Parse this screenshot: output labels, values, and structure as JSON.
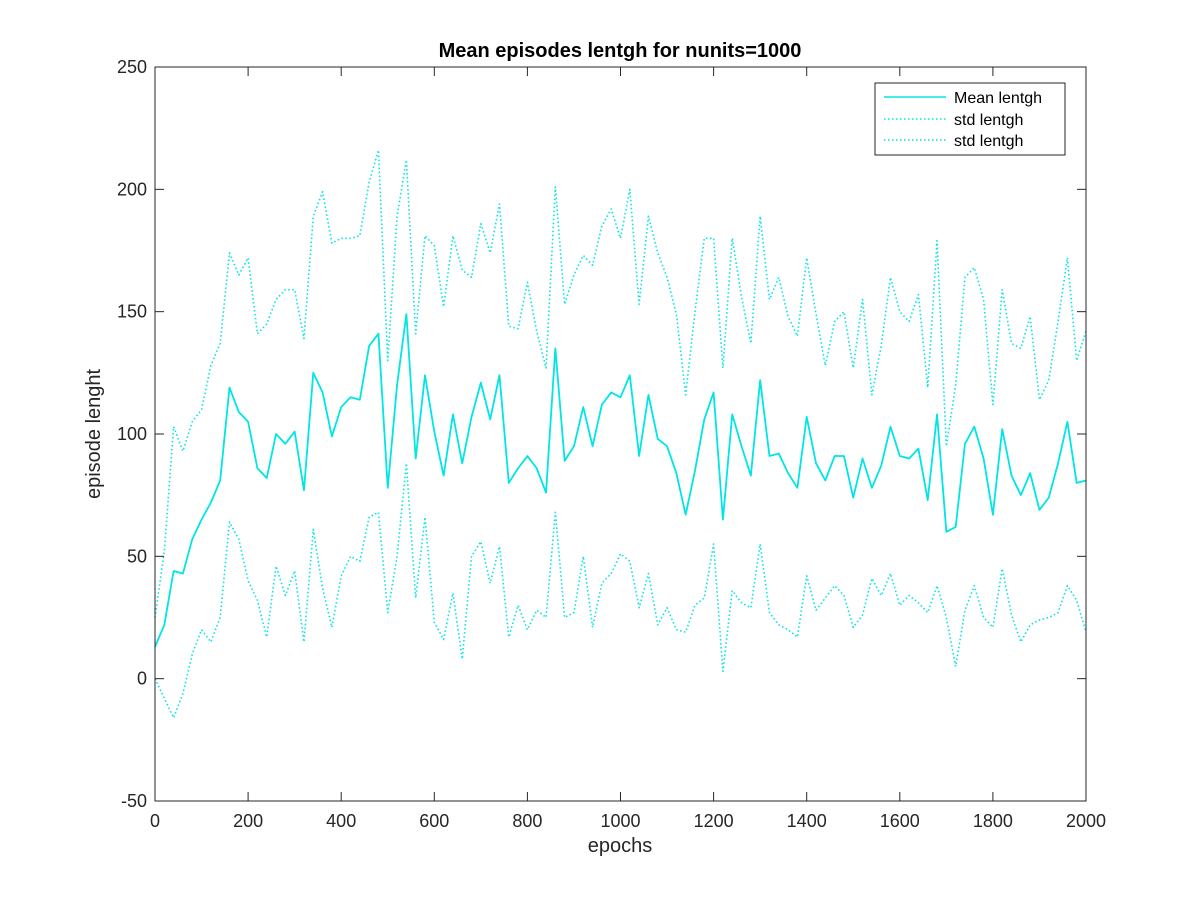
{
  "chart_data": {
    "type": "line",
    "title": "Mean episodes lentgh for nunits=1000",
    "xlabel": "epochs",
    "ylabel": "episode lenght",
    "xlim": [
      0,
      2000
    ],
    "ylim": [
      -50,
      250
    ],
    "xticks": [
      0,
      200,
      400,
      600,
      800,
      1000,
      1200,
      1400,
      1600,
      1800,
      2000
    ],
    "yticks": [
      -50,
      0,
      50,
      100,
      150,
      200,
      250
    ],
    "grid": false,
    "legend_position": "top-right",
    "line_color": "#00e5e5",
    "x": [
      0,
      20,
      40,
      60,
      80,
      100,
      120,
      140,
      160,
      180,
      200,
      220,
      240,
      260,
      280,
      300,
      320,
      340,
      360,
      380,
      400,
      420,
      440,
      460,
      480,
      500,
      520,
      540,
      560,
      580,
      600,
      620,
      640,
      660,
      680,
      700,
      720,
      740,
      760,
      780,
      800,
      820,
      840,
      860,
      880,
      900,
      920,
      940,
      960,
      980,
      1000,
      1020,
      1040,
      1060,
      1080,
      1100,
      1120,
      1140,
      1160,
      1180,
      1200,
      1220,
      1240,
      1260,
      1280,
      1300,
      1320,
      1340,
      1360,
      1380,
      1400,
      1420,
      1440,
      1460,
      1480,
      1500,
      1520,
      1540,
      1560,
      1580,
      1600,
      1620,
      1640,
      1660,
      1680,
      1700,
      1720,
      1740,
      1760,
      1780,
      1800,
      1820,
      1840,
      1860,
      1880,
      1900,
      1920,
      1940,
      1960,
      1980,
      2000
    ],
    "series": [
      {
        "name": "Mean lentgh",
        "style": "solid",
        "values": [
          13,
          22,
          44,
          43,
          57,
          65,
          72,
          81,
          119,
          109,
          105,
          86,
          82,
          100,
          96,
          101,
          77,
          125,
          117,
          99,
          111,
          115,
          114,
          136,
          141,
          78,
          120,
          149,
          90,
          124,
          101,
          83,
          108,
          88,
          107,
          121,
          106,
          124,
          80,
          86,
          91,
          86,
          76,
          135,
          89,
          95,
          111,
          95,
          112,
          117,
          115,
          124,
          91,
          116,
          98,
          95,
          84,
          67,
          85,
          106,
          117,
          65,
          108,
          95,
          83,
          122,
          91,
          92,
          84,
          78,
          107,
          88,
          81,
          91,
          91,
          74,
          90,
          78,
          87,
          103,
          91,
          90,
          94,
          73,
          108,
          60,
          62,
          96,
          103,
          90,
          67,
          102,
          83,
          75,
          84,
          69,
          74,
          88,
          105,
          80,
          81
        ]
      },
      {
        "name": "std lentgh",
        "style": "dotted",
        "values": [
          25,
          52,
          103,
          93,
          105,
          110,
          128,
          137,
          174,
          165,
          172,
          141,
          145,
          155,
          159,
          159,
          139,
          189,
          199,
          178,
          180,
          180,
          181,
          203,
          216,
          130,
          189,
          212,
          141,
          181,
          177,
          152,
          181,
          167,
          164,
          186,
          174,
          194,
          144,
          143,
          162,
          142,
          127,
          201,
          153,
          165,
          173,
          169,
          185,
          192,
          180,
          200,
          153,
          189,
          174,
          164,
          149,
          116,
          150,
          180,
          180,
          127,
          180,
          156,
          137,
          189,
          155,
          164,
          148,
          140,
          172,
          149,
          128,
          146,
          150,
          127,
          155,
          116,
          136,
          164,
          150,
          146,
          157,
          119,
          179,
          95,
          120,
          164,
          168,
          155,
          112,
          159,
          137,
          135,
          148,
          114,
          122,
          146,
          172,
          130,
          142
        ]
      },
      {
        "name": "std lentgh",
        "style": "dotted",
        "values": [
          0,
          -8,
          -16,
          -6,
          10,
          20,
          15,
          25,
          64,
          57,
          40,
          32,
          17,
          46,
          34,
          44,
          15,
          61,
          37,
          21,
          42,
          50,
          48,
          66,
          68,
          27,
          50,
          88,
          33,
          66,
          23,
          16,
          35,
          8,
          50,
          56,
          39,
          54,
          17,
          30,
          20,
          28,
          25,
          68,
          25,
          27,
          50,
          21,
          39,
          43,
          51,
          48,
          29,
          43,
          22,
          29,
          20,
          19,
          30,
          33,
          55,
          3,
          36,
          31,
          29,
          55,
          27,
          22,
          20,
          17,
          42,
          28,
          33,
          38,
          34,
          21,
          26,
          41,
          34,
          43,
          30,
          34,
          31,
          27,
          38,
          25,
          5,
          28,
          38,
          25,
          21,
          45,
          26,
          15,
          22,
          24,
          25,
          27,
          38,
          32,
          19
        ]
      }
    ]
  }
}
